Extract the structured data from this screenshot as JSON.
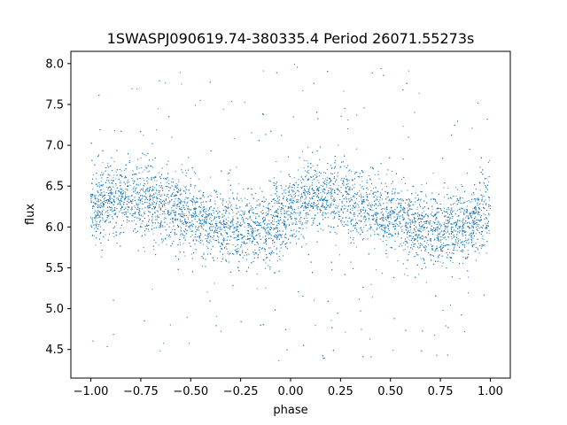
{
  "chart_data": {
    "type": "scatter",
    "title": "1SWASPJ090619.74-380335.4 Period 26071.55273s",
    "xlabel": "phase",
    "ylabel": "flux",
    "xlim": [
      -1.1,
      1.1
    ],
    "ylim": [
      4.15,
      8.15
    ],
    "xticks": [
      -1.0,
      -0.75,
      -0.5,
      -0.25,
      0.0,
      0.25,
      0.5,
      0.75,
      1.0
    ],
    "xtick_labels": [
      "−1.00",
      "−0.75",
      "−0.50",
      "−0.25",
      "0.00",
      "0.25",
      "0.50",
      "0.75",
      "1.00"
    ],
    "yticks": [
      4.5,
      5.0,
      5.5,
      6.0,
      6.5,
      7.0,
      7.5,
      8.0
    ],
    "ytick_labels": [
      "4.5",
      "5.0",
      "5.5",
      "6.0",
      "6.5",
      "7.0",
      "7.5",
      "8.0"
    ],
    "grid": false,
    "legend": "none",
    "marker_color": "#1f77b4",
    "series": [
      {
        "x_range": [
          -1.0,
          1.0
        ],
        "trend_phase": [
          -1.0,
          -0.875,
          -0.75,
          -0.625,
          -0.5,
          -0.375,
          -0.25,
          -0.125,
          0.0,
          0.125,
          0.25,
          0.375,
          0.5,
          0.625,
          0.75,
          0.875,
          1.0
        ],
        "trend_flux": [
          6.2,
          6.38,
          6.35,
          6.25,
          6.12,
          6.0,
          5.95,
          6.0,
          6.2,
          6.38,
          6.35,
          6.25,
          6.12,
          6.0,
          5.95,
          6.0,
          6.2
        ],
        "flux_spread": 0.22,
        "outlier_range": [
          4.35,
          8.0
        ],
        "n_points": 9000
      }
    ]
  }
}
